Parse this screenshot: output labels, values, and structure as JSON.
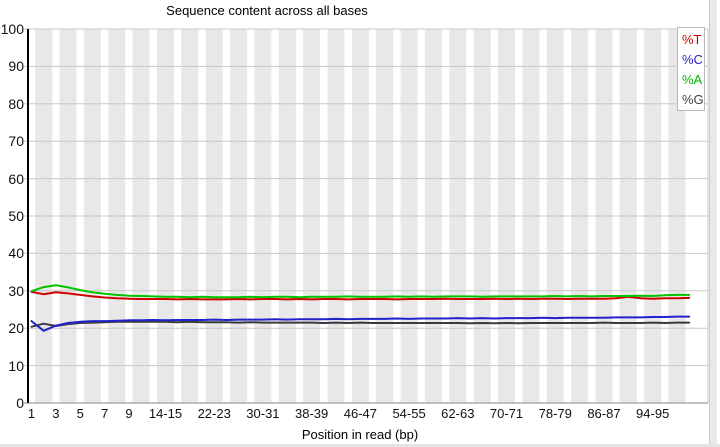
{
  "chart_data": {
    "type": "line",
    "title": "Sequence content across all bases",
    "xlabel": "Position in read (bp)",
    "ylabel": "",
    "ylim": [
      0,
      100
    ],
    "grid": true,
    "band_color": "#e8e8e8",
    "grid_color": "#c8c8c8",
    "axis_color": "#000000",
    "baseline_color": "#9e9e9e",
    "y_ticks": [
      100,
      90,
      80,
      70,
      60,
      50,
      40,
      30,
      20,
      10,
      0
    ],
    "x_tick_labels": [
      {
        "cat": 1,
        "label": "1"
      },
      {
        "cat": 3,
        "label": "3"
      },
      {
        "cat": 5,
        "label": "5"
      },
      {
        "cat": 7,
        "label": "7"
      },
      {
        "cat": 9,
        "label": "9"
      },
      {
        "cat": 12,
        "label": "14-15"
      },
      {
        "cat": 16,
        "label": "22-23"
      },
      {
        "cat": 20,
        "label": "30-31"
      },
      {
        "cat": 24,
        "label": "38-39"
      },
      {
        "cat": 28,
        "label": "46-47"
      },
      {
        "cat": 32,
        "label": "54-55"
      },
      {
        "cat": 36,
        "label": "62-63"
      },
      {
        "cat": 40,
        "label": "70-71"
      },
      {
        "cat": 44,
        "label": "78-79"
      },
      {
        "cat": 48,
        "label": "86-87"
      },
      {
        "cat": 52,
        "label": "94-95"
      }
    ],
    "categories": [
      "1",
      "2",
      "3",
      "4",
      "5",
      "6",
      "7",
      "8",
      "9",
      "10-11",
      "12-13",
      "14-15",
      "16-17",
      "18-19",
      "20-21",
      "22-23",
      "24-25",
      "26-27",
      "28-29",
      "30-31",
      "32-33",
      "34-35",
      "36-37",
      "38-39",
      "40-41",
      "42-43",
      "44-45",
      "46-47",
      "48-49",
      "50-51",
      "52-53",
      "54-55",
      "56-57",
      "58-59",
      "60-61",
      "62-63",
      "64-65",
      "66-67",
      "68-69",
      "70-71",
      "72-73",
      "74-75",
      "76-77",
      "78-79",
      "80-81",
      "82-83",
      "84-85",
      "86-87",
      "88-89",
      "90-91",
      "92-93",
      "94-95",
      "96-97",
      "98-99",
      "100-101"
    ],
    "series": [
      {
        "name": "%T",
        "color": "#cf0000",
        "values": [
          29.7,
          29.1,
          29.6,
          29.3,
          28.9,
          28.5,
          28.2,
          28.0,
          27.9,
          27.8,
          27.8,
          27.8,
          27.7,
          27.8,
          27.7,
          27.7,
          27.7,
          27.8,
          27.7,
          27.8,
          27.8,
          27.7,
          27.8,
          27.7,
          27.8,
          27.8,
          27.7,
          27.8,
          27.8,
          27.8,
          27.7,
          27.8,
          27.8,
          27.8,
          27.9,
          27.8,
          27.8,
          27.8,
          27.9,
          27.8,
          27.9,
          27.8,
          27.9,
          27.9,
          27.8,
          27.9,
          27.9,
          27.9,
          28.0,
          28.4,
          28.0,
          27.9,
          28.0,
          28.0,
          28.1
        ]
      },
      {
        "name": "%G",
        "color": "#3a3a3a",
        "values": [
          20.4,
          21.2,
          20.6,
          21.1,
          21.4,
          21.5,
          21.6,
          21.7,
          21.7,
          21.7,
          21.7,
          21.7,
          21.6,
          21.7,
          21.6,
          21.6,
          21.6,
          21.5,
          21.6,
          21.5,
          21.5,
          21.5,
          21.5,
          21.5,
          21.4,
          21.5,
          21.4,
          21.5,
          21.4,
          21.4,
          21.4,
          21.4,
          21.4,
          21.4,
          21.4,
          21.4,
          21.3,
          21.4,
          21.3,
          21.4,
          21.3,
          21.4,
          21.4,
          21.4,
          21.4,
          21.4,
          21.4,
          21.5,
          21.4,
          21.4,
          21.4,
          21.5,
          21.4,
          21.5,
          21.5
        ]
      },
      {
        "name": "%C",
        "color": "#2222cc",
        "values": [
          21.9,
          19.3,
          20.7,
          21.4,
          21.7,
          21.9,
          21.9,
          22.0,
          22.1,
          22.1,
          22.2,
          22.1,
          22.2,
          22.2,
          22.2,
          22.3,
          22.2,
          22.3,
          22.3,
          22.3,
          22.4,
          22.3,
          22.4,
          22.4,
          22.4,
          22.5,
          22.4,
          22.5,
          22.5,
          22.5,
          22.6,
          22.5,
          22.6,
          22.6,
          22.6,
          22.7,
          22.6,
          22.7,
          22.6,
          22.7,
          22.7,
          22.7,
          22.8,
          22.7,
          22.8,
          22.8,
          22.8,
          22.8,
          22.9,
          22.9,
          22.9,
          23.0,
          23.0,
          23.1,
          23.1
        ]
      },
      {
        "name": "%A",
        "color": "#00c400",
        "values": [
          29.9,
          31.0,
          31.5,
          30.9,
          30.2,
          29.6,
          29.2,
          28.9,
          28.7,
          28.6,
          28.5,
          28.4,
          28.4,
          28.3,
          28.4,
          28.3,
          28.3,
          28.3,
          28.4,
          28.3,
          28.4,
          28.4,
          28.3,
          28.4,
          28.4,
          28.4,
          28.5,
          28.4,
          28.4,
          28.4,
          28.5,
          28.4,
          28.5,
          28.4,
          28.5,
          28.5,
          28.5,
          28.4,
          28.5,
          28.5,
          28.5,
          28.5,
          28.5,
          28.6,
          28.5,
          28.6,
          28.5,
          28.6,
          28.6,
          28.6,
          28.7,
          28.6,
          28.8,
          28.9,
          28.9
        ]
      }
    ],
    "legend": {
      "position": "top-right",
      "items": [
        {
          "label": "%T",
          "color": "#cc0000"
        },
        {
          "label": "%C",
          "color": "#2222cc"
        },
        {
          "label": "%A",
          "color": "#00b400"
        },
        {
          "label": "%G",
          "color": "#3f3f3f"
        }
      ]
    }
  }
}
